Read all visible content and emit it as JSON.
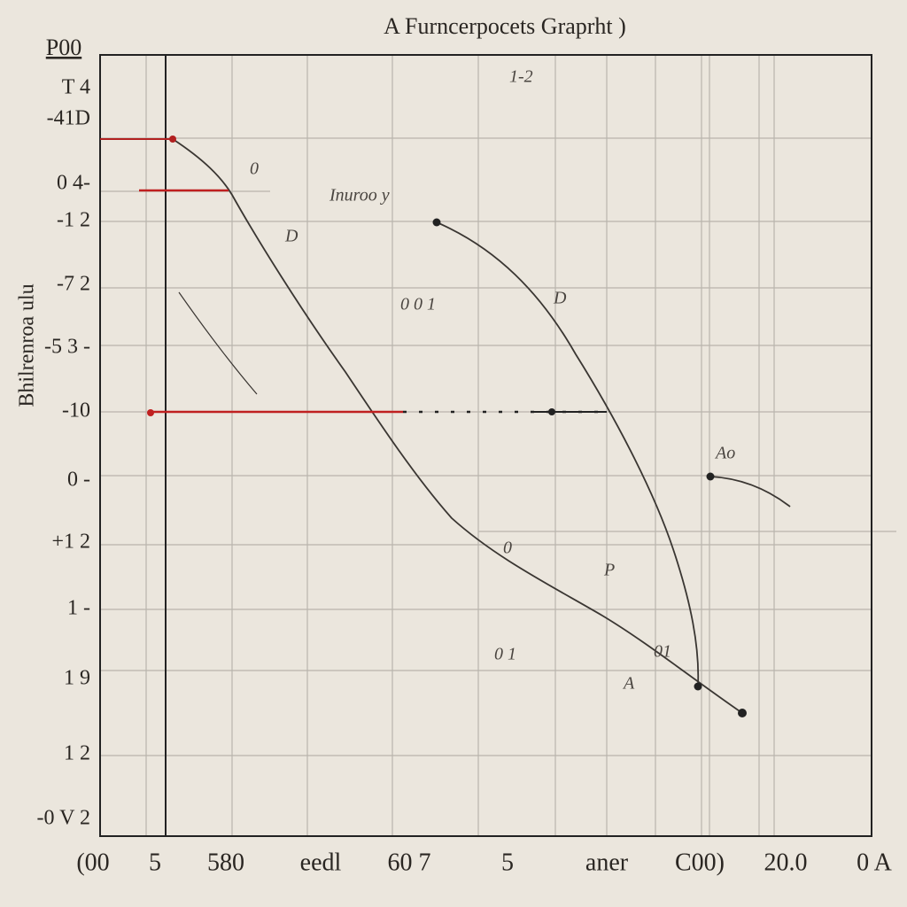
{
  "title": "A Furncerpocets Graprht )",
  "top_label": "P00",
  "y_axis_title": "Bhilrenroa ulu",
  "y_labels": [
    "T 4",
    "-41D",
    "0 4-",
    "-1 2",
    "-7 2",
    "-5 3 -",
    "-10",
    "0 -",
    "+1 2",
    "1 -",
    "1 9",
    "1 2",
    "-0 V 2"
  ],
  "x_labels": [
    "(00",
    "5",
    "580",
    "eedl",
    "60 7",
    "5",
    "aner",
    "C00)",
    "20.0",
    "0 A"
  ],
  "annotations": [
    "1-2",
    "Inuroo y",
    "0 0 1",
    "D",
    "0",
    "D",
    "Ao",
    "0",
    "0 1",
    "01",
    "P",
    "A"
  ]
}
